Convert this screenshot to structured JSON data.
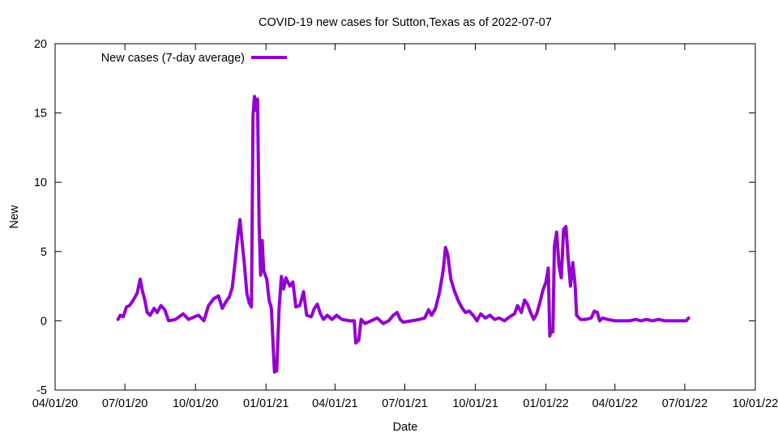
{
  "chart_data": {
    "type": "line",
    "title": "COVID-19 new cases for Sutton,Texas as of 2022-07-07",
    "xlabel": "Date",
    "ylabel": "New",
    "xlim": [
      "2020-04-01",
      "2022-10-01"
    ],
    "ylim": [
      -5,
      20
    ],
    "x_ticks": [
      "2020-04-01",
      "2020-07-01",
      "2020-10-01",
      "2021-01-01",
      "2021-04-01",
      "2021-07-01",
      "2021-10-01",
      "2022-01-01",
      "2022-04-01",
      "2022-07-01",
      "2022-10-01"
    ],
    "x_tick_labels": [
      "04/01/20",
      "07/01/20",
      "10/01/20",
      "01/01/21",
      "04/01/21",
      "07/01/21",
      "10/01/21",
      "01/01/22",
      "04/01/22",
      "07/01/22",
      "10/01/22"
    ],
    "y_ticks": [
      -5,
      0,
      5,
      10,
      15,
      20
    ],
    "y_tick_labels": [
      "-5",
      "0",
      "5",
      "10",
      "15",
      "20"
    ],
    "grid": false,
    "legend_position": "top-left",
    "series": [
      {
        "name": "New cases (7-day average)",
        "color": "#9400d3",
        "points": [
          [
            "2020-06-22",
            0.1
          ],
          [
            "2020-06-25",
            0.4
          ],
          [
            "2020-06-29",
            0.3
          ],
          [
            "2020-07-03",
            1.0
          ],
          [
            "2020-07-07",
            1.1
          ],
          [
            "2020-07-12",
            1.5
          ],
          [
            "2020-07-17",
            2.0
          ],
          [
            "2020-07-21",
            3.0
          ],
          [
            "2020-07-24",
            2.1
          ],
          [
            "2020-07-27",
            1.5
          ],
          [
            "2020-07-30",
            0.6
          ],
          [
            "2020-08-03",
            0.4
          ],
          [
            "2020-08-08",
            0.9
          ],
          [
            "2020-08-12",
            0.6
          ],
          [
            "2020-08-17",
            1.1
          ],
          [
            "2020-08-22",
            0.8
          ],
          [
            "2020-08-27",
            0.0
          ],
          [
            "2020-09-05",
            0.1
          ],
          [
            "2020-09-15",
            0.5
          ],
          [
            "2020-09-22",
            0.1
          ],
          [
            "2020-09-30",
            0.3
          ],
          [
            "2020-10-05",
            0.4
          ],
          [
            "2020-10-12",
            0.0
          ],
          [
            "2020-10-18",
            1.1
          ],
          [
            "2020-10-25",
            1.6
          ],
          [
            "2020-10-31",
            1.8
          ],
          [
            "2020-11-05",
            0.9
          ],
          [
            "2020-11-10",
            1.4
          ],
          [
            "2020-11-14",
            1.7
          ],
          [
            "2020-11-18",
            2.4
          ],
          [
            "2020-11-22",
            4.4
          ],
          [
            "2020-11-25",
            6.0
          ],
          [
            "2020-11-28",
            7.3
          ],
          [
            "2020-12-01",
            5.6
          ],
          [
            "2020-12-04",
            4.0
          ],
          [
            "2020-12-07",
            2.0
          ],
          [
            "2020-12-10",
            1.3
          ],
          [
            "2020-12-13",
            1.0
          ],
          [
            "2020-12-15",
            14.8
          ],
          [
            "2020-12-17",
            16.2
          ],
          [
            "2020-12-19",
            15.2
          ],
          [
            "2020-12-21",
            16.0
          ],
          [
            "2020-12-23",
            7.0
          ],
          [
            "2020-12-25",
            3.3
          ],
          [
            "2020-12-27",
            5.8
          ],
          [
            "2020-12-29",
            3.6
          ],
          [
            "2021-01-02",
            3.0
          ],
          [
            "2021-01-05",
            1.5
          ],
          [
            "2021-01-08",
            0.9
          ],
          [
            "2021-01-10",
            -1.5
          ],
          [
            "2021-01-12",
            -3.7
          ],
          [
            "2021-01-15",
            -3.6
          ],
          [
            "2021-01-18",
            0.8
          ],
          [
            "2021-01-21",
            3.2
          ],
          [
            "2021-01-24",
            2.3
          ],
          [
            "2021-01-27",
            3.1
          ],
          [
            "2021-02-01",
            2.5
          ],
          [
            "2021-02-05",
            2.8
          ],
          [
            "2021-02-09",
            1.0
          ],
          [
            "2021-02-14",
            1.1
          ],
          [
            "2021-02-19",
            2.1
          ],
          [
            "2021-02-23",
            0.4
          ],
          [
            "2021-03-01",
            0.3
          ],
          [
            "2021-03-05",
            0.9
          ],
          [
            "2021-03-09",
            1.2
          ],
          [
            "2021-03-13",
            0.5
          ],
          [
            "2021-03-17",
            0.1
          ],
          [
            "2021-03-22",
            0.4
          ],
          [
            "2021-03-28",
            0.1
          ],
          [
            "2021-04-03",
            0.4
          ],
          [
            "2021-04-10",
            0.1
          ],
          [
            "2021-04-20",
            0.0
          ],
          [
            "2021-04-26",
            0.0
          ],
          [
            "2021-04-28",
            -1.6
          ],
          [
            "2021-05-02",
            -1.4
          ],
          [
            "2021-05-05",
            0.1
          ],
          [
            "2021-05-10",
            -0.2
          ],
          [
            "2021-05-18",
            0.0
          ],
          [
            "2021-05-26",
            0.2
          ],
          [
            "2021-06-03",
            -0.2
          ],
          [
            "2021-06-10",
            0.0
          ],
          [
            "2021-06-16",
            0.4
          ],
          [
            "2021-06-21",
            0.6
          ],
          [
            "2021-06-25",
            0.1
          ],
          [
            "2021-06-29",
            -0.1
          ],
          [
            "2021-07-10",
            0.0
          ],
          [
            "2021-07-20",
            0.1
          ],
          [
            "2021-07-27",
            0.2
          ],
          [
            "2021-08-01",
            0.8
          ],
          [
            "2021-08-05",
            0.4
          ],
          [
            "2021-08-10",
            0.9
          ],
          [
            "2021-08-15",
            2.0
          ],
          [
            "2021-08-20",
            3.6
          ],
          [
            "2021-08-23",
            5.3
          ],
          [
            "2021-08-26",
            4.8
          ],
          [
            "2021-08-30",
            3.0
          ],
          [
            "2021-09-04",
            2.1
          ],
          [
            "2021-09-09",
            1.4
          ],
          [
            "2021-09-14",
            0.9
          ],
          [
            "2021-09-18",
            0.6
          ],
          [
            "2021-09-23",
            0.7
          ],
          [
            "2021-09-28",
            0.4
          ],
          [
            "2021-10-03",
            0.0
          ],
          [
            "2021-10-08",
            0.5
          ],
          [
            "2021-10-14",
            0.2
          ],
          [
            "2021-10-20",
            0.4
          ],
          [
            "2021-10-26",
            0.1
          ],
          [
            "2021-11-01",
            0.2
          ],
          [
            "2021-11-08",
            0.0
          ],
          [
            "2021-11-15",
            0.3
          ],
          [
            "2021-11-21",
            0.5
          ],
          [
            "2021-11-25",
            1.1
          ],
          [
            "2021-11-30",
            0.6
          ],
          [
            "2021-12-04",
            1.5
          ],
          [
            "2021-12-08",
            1.2
          ],
          [
            "2021-12-12",
            0.6
          ],
          [
            "2021-12-16",
            0.1
          ],
          [
            "2021-12-20",
            0.5
          ],
          [
            "2021-12-24",
            1.3
          ],
          [
            "2021-12-28",
            2.2
          ],
          [
            "2022-01-01",
            2.8
          ],
          [
            "2022-01-04",
            3.8
          ],
          [
            "2022-01-06",
            -1.1
          ],
          [
            "2022-01-08",
            -0.6
          ],
          [
            "2022-01-10",
            -0.8
          ],
          [
            "2022-01-12",
            5.4
          ],
          [
            "2022-01-15",
            6.4
          ],
          [
            "2022-01-18",
            4.0
          ],
          [
            "2022-01-21",
            3.1
          ],
          [
            "2022-01-24",
            6.6
          ],
          [
            "2022-01-27",
            6.8
          ],
          [
            "2022-01-30",
            4.5
          ],
          [
            "2022-02-02",
            2.5
          ],
          [
            "2022-02-05",
            4.2
          ],
          [
            "2022-02-08",
            2.6
          ],
          [
            "2022-02-10",
            0.4
          ],
          [
            "2022-02-15",
            0.1
          ],
          [
            "2022-02-22",
            0.1
          ],
          [
            "2022-03-01",
            0.2
          ],
          [
            "2022-03-05",
            0.7
          ],
          [
            "2022-03-09",
            0.6
          ],
          [
            "2022-03-12",
            0.0
          ],
          [
            "2022-03-16",
            0.2
          ],
          [
            "2022-03-22",
            0.1
          ],
          [
            "2022-04-01",
            0.0
          ],
          [
            "2022-04-10",
            0.0
          ],
          [
            "2022-04-20",
            0.0
          ],
          [
            "2022-04-28",
            0.1
          ],
          [
            "2022-05-05",
            0.0
          ],
          [
            "2022-05-12",
            0.1
          ],
          [
            "2022-05-20",
            0.0
          ],
          [
            "2022-05-28",
            0.1
          ],
          [
            "2022-06-05",
            0.0
          ],
          [
            "2022-06-15",
            0.0
          ],
          [
            "2022-06-25",
            0.0
          ],
          [
            "2022-07-03",
            0.0
          ],
          [
            "2022-07-06",
            0.2
          ]
        ]
      }
    ]
  }
}
